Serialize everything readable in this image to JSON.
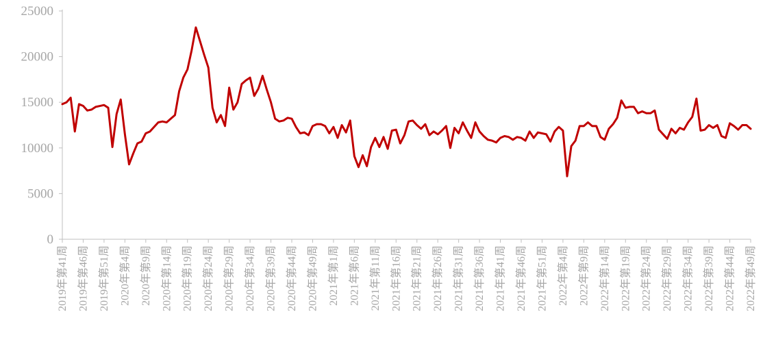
{
  "chart_data": {
    "type": "line",
    "title": "",
    "xlabel": "",
    "ylabel": "",
    "ylim": [
      0,
      25000
    ],
    "yticks": [
      0,
      5000,
      10000,
      15000,
      20000,
      25000
    ],
    "ytick_labels": [
      "0",
      "5000",
      "10000",
      "15000",
      "20000",
      "25000"
    ],
    "grid": false,
    "legend": "none",
    "line_color": "#c00000",
    "axis_color": "#bfbfbf",
    "label_color": "#a6a6a6",
    "start_label_index": 0,
    "label_every": 5,
    "xtick_labels": [
      "2019年第41周",
      "2019年第46周",
      "2019年第51周",
      "2020年第4周",
      "2020年第9周",
      "2020年第14周",
      "2020年第19周",
      "2020年第24周",
      "2020年第29周",
      "2020年第34周",
      "2020年第39周",
      "2020年第44周",
      "2020年第49周",
      "2021年第1周",
      "2021年第6周",
      "2021年第11周",
      "2021年第16周",
      "2021年第21周",
      "2021年第26周",
      "2021年第31周",
      "2021年第36周",
      "2021年第41周",
      "2021年第46周",
      "2021年第51周",
      "2022年第4周",
      "2022年第9周",
      "2022年第14周",
      "2022年第19周",
      "2022年第24周",
      "2022年第29周",
      "2022年第34周",
      "2022年第39周",
      "2022年第44周",
      "2022年第49周"
    ],
    "series": [
      {
        "values": [
          14800,
          15000,
          15500,
          11800,
          14800,
          14600,
          14100,
          14200,
          14500,
          14600,
          14700,
          14400,
          10100,
          13700,
          15300,
          11500,
          8200,
          9400,
          10500,
          10700,
          11600,
          11800,
          12300,
          12800,
          12900,
          12800,
          13200,
          13600,
          16200,
          17700,
          18600,
          20700,
          23200,
          21700,
          20200,
          18800,
          14400,
          12800,
          13600,
          12400,
          16600,
          14200,
          15000,
          17000,
          17400,
          17700,
          15700,
          16500,
          17900,
          16400,
          15000,
          13200,
          12900,
          13000,
          13300,
          13200,
          12300,
          11600,
          11700,
          11400,
          12400,
          12600,
          12600,
          12400,
          11600,
          12300,
          11100,
          12500,
          11700,
          13000,
          9100,
          7900,
          9200,
          8000,
          10100,
          11100,
          10100,
          11200,
          9900,
          11900,
          12000,
          10500,
          11400,
          12900,
          13000,
          12500,
          12100,
          12600,
          11400,
          11800,
          11500,
          11900,
          12400,
          10000,
          12200,
          11600,
          12800,
          11900,
          11100,
          12800,
          11800,
          11300,
          10900,
          10800,
          10600,
          11100,
          11300,
          11200,
          10900,
          11200,
          11100,
          10800,
          11800,
          11100,
          11700,
          11600,
          11500,
          10700,
          11800,
          12300,
          11900,
          6900,
          10200,
          10800,
          12400,
          12400,
          12800,
          12400,
          12400,
          11200,
          10900,
          12100,
          12600,
          13300,
          15200,
          14400,
          14500,
          14500,
          13800,
          14000,
          13800,
          13800,
          14100,
          12000,
          11500,
          11000,
          12100,
          11600,
          12200,
          12000,
          12800,
          13400,
          15400,
          11900,
          12000,
          12500,
          12200,
          12500,
          11300,
          11100,
          12700,
          12400,
          12000,
          12500,
          12500,
          12100
        ]
      }
    ]
  }
}
